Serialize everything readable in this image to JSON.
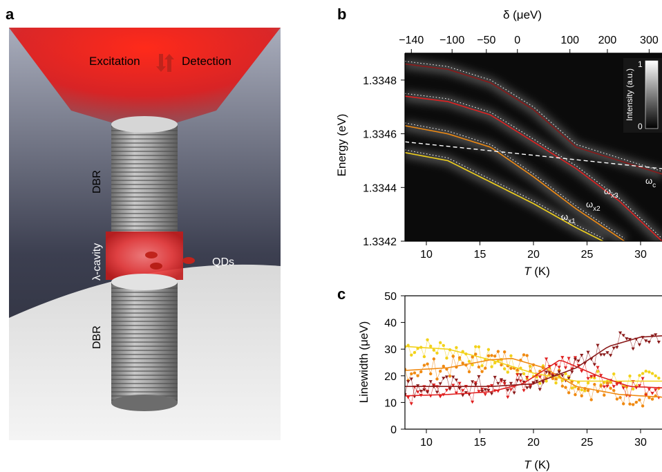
{
  "panels": {
    "a": "a",
    "b": "b",
    "c": "c"
  },
  "panel_a": {
    "excitation": "Excitation",
    "detection": "Detection",
    "dbr_top": "DBR",
    "dbr_bottom": "DBR",
    "cavity": "λ-cavity",
    "qds": "QDs",
    "colors": {
      "laser": "#e01818",
      "pillar": "#9a9a9a",
      "background_top": "#2f3240",
      "floor": "#e6e6e6"
    }
  },
  "panel_b": {
    "top_axis_label": "δ (μeV)",
    "top_ticks": [
      "−140",
      "−100",
      "−50",
      "0",
      "100",
      "200",
      "300"
    ],
    "y_axis_label": "Energy (eV)",
    "y_ticks": [
      "1.3348",
      "1.3346",
      "1.3344",
      "1.3342"
    ],
    "x_ticks": [
      "10",
      "15",
      "20",
      "25",
      "30"
    ],
    "x_axis_label_italic": "T",
    "x_axis_label_unit": " (K)",
    "colorbar": {
      "label": "Intensity (a.u.)",
      "max": "1",
      "min": "0"
    },
    "labels": {
      "wc": "ω",
      "wc_sub": "c",
      "wx1": "ω",
      "wx1_sub": "x1",
      "wx2": "ω",
      "wx2_sub": "x2",
      "wx3": "ω",
      "wx3_sub": "x3"
    }
  },
  "chart_data": [
    {
      "type": "line",
      "panel": "b",
      "xlabel": "T (K)",
      "ylabel": "Energy (eV)",
      "xlim": [
        8,
        32
      ],
      "ylim": [
        1.3342,
        1.3349
      ],
      "grid": false,
      "series": [
        {
          "name": "ωx1",
          "color": "#f2d21b",
          "x": [
            8,
            12,
            16,
            20,
            24,
            26.5
          ],
          "y": [
            1.33453,
            1.3345,
            1.33442,
            1.33434,
            1.33425,
            1.3342
          ]
        },
        {
          "name": "ωx2",
          "color": "#f08a12",
          "x": [
            8,
            12,
            16,
            20,
            24,
            28.5
          ],
          "y": [
            1.33463,
            1.3346,
            1.33455,
            1.33444,
            1.33432,
            1.3342
          ]
        },
        {
          "name": "ωx3",
          "color": "#e02020",
          "x": [
            8,
            12,
            16,
            20,
            24,
            28,
            32
          ],
          "y": [
            1.33474,
            1.33472,
            1.33467,
            1.33457,
            1.33447,
            1.33435,
            1.3342
          ]
        },
        {
          "name": "",
          "color": "#8a1a1a",
          "x": [
            8,
            12,
            16,
            20,
            24,
            28,
            32
          ],
          "y": [
            1.33486,
            1.33484,
            1.33479,
            1.33469,
            1.33455,
            1.3345,
            1.33445
          ]
        },
        {
          "name": "ωc",
          "color": "#ffffff",
          "dashed": true,
          "x": [
            8,
            32
          ],
          "y": [
            1.33457,
            1.33447
          ]
        }
      ]
    },
    {
      "type": "scatter",
      "panel": "c",
      "xlabel": "T (K)",
      "ylabel": "Linewidth (μeV)",
      "xlim": [
        8,
        32
      ],
      "ylim": [
        0,
        50
      ],
      "y_ticks": [
        "0",
        "10",
        "20",
        "30",
        "40",
        "50"
      ],
      "x_ticks": [
        "10",
        "15",
        "20",
        "25",
        "30"
      ],
      "grid": false,
      "series": [
        {
          "color": "#f2d21b",
          "marker": "circle",
          "fit_x": [
            8,
            12,
            16,
            20,
            24,
            28,
            32
          ],
          "fit_y": [
            31,
            30,
            26,
            21,
            18,
            18,
            18
          ]
        },
        {
          "color": "#f08a12",
          "marker": "circle",
          "fit_x": [
            8,
            12,
            16,
            18,
            21,
            24,
            28,
            32
          ],
          "fit_y": [
            22,
            23,
            26,
            26.5,
            23,
            16,
            13,
            12
          ]
        },
        {
          "color": "#e02020",
          "marker": "triangle",
          "fit_x": [
            8,
            12,
            16,
            19,
            22.5,
            26,
            29,
            32
          ],
          "fit_y": [
            12.5,
            13,
            14,
            17,
            26,
            20,
            16,
            15.5
          ]
        },
        {
          "color": "#8a1a1a",
          "marker": "triangle",
          "fit_x": [
            8,
            12,
            16,
            20,
            24,
            27,
            30,
            32
          ],
          "fit_y": [
            16,
            16,
            16,
            17,
            23,
            31,
            34.5,
            35
          ]
        }
      ]
    }
  ]
}
